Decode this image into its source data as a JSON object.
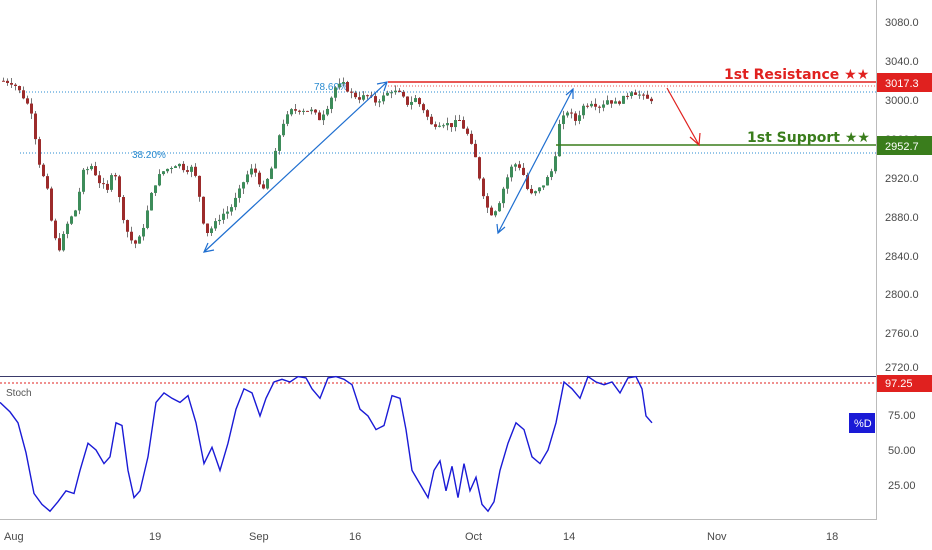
{
  "chart_data": [
    {
      "type": "candlestick",
      "title": "",
      "price_axis": {
        "ticks": [
          3080,
          3040,
          3000,
          2960,
          2920,
          2880,
          2840,
          2800,
          2760,
          2720
        ],
        "ylim": [
          2712,
          3112
        ],
        "tick_labels": [
          "3080.0",
          "3040.0",
          "3000.0",
          "2960.0",
          "2920.0",
          "2880.0",
          "2840.0",
          "2800.0",
          "2760.0",
          "2720.0"
        ]
      },
      "time_axis": {
        "labels": [
          "Aug",
          "19",
          "Sep",
          "16",
          "Oct",
          "14",
          "Nov",
          "18"
        ]
      },
      "levels": [
        {
          "name": "1st Resistance ★★",
          "value": 3017.3,
          "tag": "3017.3",
          "color": "#e0211f"
        },
        {
          "name": "1st Support ★★",
          "value": 2952.7,
          "tag": "2952.7",
          "color": "#3a7d1c"
        }
      ],
      "fibonacci": [
        {
          "label": "78.60%",
          "value": 3008
        },
        {
          "label": "38.20%",
          "value": 2945
        }
      ],
      "colors": {
        "up": "#3d8c5a",
        "down": "#9c2b2b",
        "resistance": "#e0211f",
        "support": "#3a7d1c",
        "fib": "#2a8bd0",
        "arrows": "#1f6fd0"
      }
    },
    {
      "type": "line",
      "title": "Stoch",
      "series": [
        {
          "name": "%D",
          "color": "#1a1ad6"
        }
      ],
      "yaxis": {
        "ticks": [
          75,
          50,
          25
        ],
        "tick_labels": [
          "75.00",
          "50.00",
          "25.00"
        ]
      },
      "level": {
        "value": 97.25,
        "tag": "97.25"
      }
    }
  ]
}
